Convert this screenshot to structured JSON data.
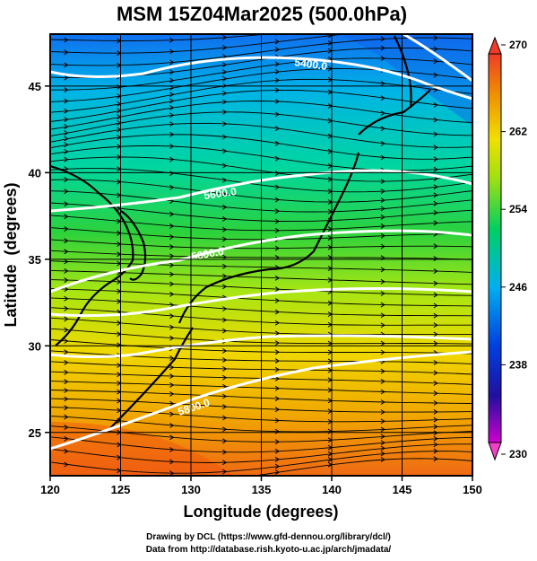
{
  "title": "MSM 15Z04Mar2025 (500.0hPa)",
  "axes": {
    "xlabel": "Longitude (degrees)",
    "ylabel": "Latitude  (degrees)",
    "xlim": [
      120,
      150
    ],
    "ylim": [
      22.5,
      48
    ],
    "xticks": [
      "120",
      "125",
      "130",
      "135",
      "140",
      "145",
      "150"
    ],
    "yticks": [
      "25",
      "30",
      "35",
      "40",
      "45"
    ],
    "grid": true
  },
  "colorbar": {
    "range": [
      230,
      270
    ],
    "labels": [
      "270",
      "262",
      "254",
      "246",
      "238",
      "230"
    ],
    "colors": [
      "#c000c0",
      "#0020c0",
      "#00a8f0",
      "#00c878",
      "#f0e000",
      "#f08000",
      "#f03c28"
    ]
  },
  "contours": {
    "color": "#ffffff",
    "labels": [
      "5400.0",
      "5600.0",
      "5800.0",
      "5600.0"
    ]
  },
  "credits": {
    "line1": "Drawing by DCL (https://www.gfd-dennou.org/library/dcl/)",
    "line2": "Data from http://database.rish.kyoto-u.ac.jp/arch/jmadata/"
  },
  "chart_data": {
    "type": "heatmap",
    "title": "MSM 15Z04Mar2025 (500.0hPa)",
    "xlabel": "Longitude (degrees)",
    "ylabel": "Latitude  (degrees)",
    "xlim": [
      120,
      150
    ],
    "ylim": [
      22.5,
      48
    ],
    "field": "temperature",
    "colorbar_range": [
      230,
      270
    ],
    "contour_label_values": [
      5400.0,
      5600.0,
      5800.0,
      5600.0
    ],
    "overlays": [
      "wind streamlines",
      "height contours",
      "coastlines"
    ]
  }
}
